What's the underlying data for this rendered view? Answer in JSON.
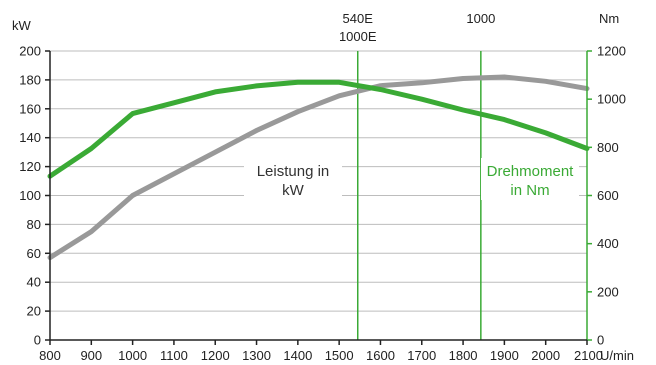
{
  "chart_data": {
    "type": "line",
    "x_unit": "U/min",
    "x_ticks": [
      800,
      900,
      1000,
      1100,
      1200,
      1300,
      1400,
      1500,
      1600,
      1700,
      1800,
      1900,
      2000,
      2100
    ],
    "xlim": [
      800,
      2100
    ],
    "left_axis": {
      "unit": "kW",
      "ylim": [
        0,
        200
      ],
      "ticks": [
        0,
        20,
        40,
        60,
        80,
        100,
        120,
        140,
        160,
        180,
        200
      ],
      "color": "#222222"
    },
    "right_axis": {
      "unit": "Nm",
      "ylim": [
        0,
        1200
      ],
      "ticks": [
        0,
        200,
        400,
        600,
        800,
        1000,
        1200
      ],
      "color": "#3aaa35"
    },
    "series": [
      {
        "name": "Leistung in kW",
        "axis": "left",
        "color": "#999999",
        "x": [
          800,
          900,
          1000,
          1100,
          1200,
          1300,
          1400,
          1500,
          1600,
          1700,
          1800,
          1900,
          2000,
          2100
        ],
        "values": [
          57,
          75,
          100,
          115,
          130,
          145,
          158,
          169,
          176,
          178,
          181,
          182,
          179,
          174
        ]
      },
      {
        "name": "Drehmoment in Nm",
        "axis": "right",
        "color": "#3aaa35",
        "x": [
          800,
          900,
          1000,
          1100,
          1200,
          1300,
          1400,
          1500,
          1600,
          1700,
          1800,
          1900,
          2000,
          2100
        ],
        "values": [
          680,
          795,
          940,
          985,
          1030,
          1055,
          1070,
          1070,
          1040,
          1000,
          955,
          915,
          860,
          795
        ]
      }
    ],
    "reference_lines": [
      {
        "x": 1545,
        "label_lines": [
          "540E",
          "1000E"
        ]
      },
      {
        "x": 1843,
        "label_lines": [
          "1000"
        ]
      }
    ],
    "series_labels": [
      {
        "lines": [
          "Leistung in",
          "kW"
        ],
        "series": "Leistung in kW"
      },
      {
        "lines": [
          "Drehmoment",
          "in Nm"
        ],
        "series": "Drehmoment in Nm"
      }
    ],
    "grid": true
  }
}
